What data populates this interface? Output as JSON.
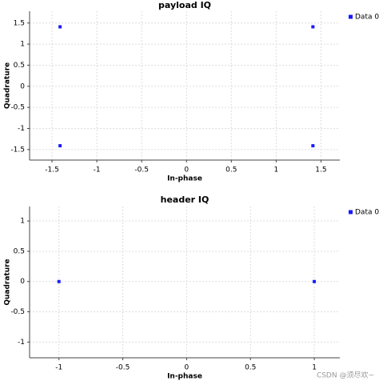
{
  "chart_data": [
    {
      "type": "scatter",
      "title": "payload IQ",
      "x_label": "In-phase",
      "y_label": "Quadrature",
      "xlim": [
        -1.75,
        1.71
      ],
      "ylim": [
        -1.75,
        1.78
      ],
      "xticks": [
        -1.5,
        -1,
        -0.5,
        0,
        0.5,
        1,
        1.5
      ],
      "yticks": [
        -1.5,
        -1,
        -0.5,
        0,
        0.5,
        1,
        1.5
      ],
      "grid": true,
      "legend": "top-right",
      "series": [
        {
          "name": "Data 0",
          "color": "#1a1aff",
          "x": [
            -1.41,
            1.41,
            -1.41,
            1.41
          ],
          "values": [
            1.41,
            1.41,
            -1.41,
            -1.41
          ]
        }
      ]
    },
    {
      "type": "scatter",
      "title": "header IQ",
      "x_label": "In-phase",
      "y_label": "Quadrature",
      "xlim": [
        -1.23,
        1.2
      ],
      "ylim": [
        -1.26,
        1.24
      ],
      "xticks": [
        -1,
        -0.5,
        0,
        0.5,
        1
      ],
      "yticks": [
        -1,
        -0.5,
        0,
        0.5,
        1
      ],
      "grid": true,
      "legend": "top-right",
      "series": [
        {
          "name": "Data 0",
          "color": "#1a1aff",
          "x": [
            -1,
            1
          ],
          "values": [
            0,
            0
          ]
        }
      ]
    }
  ],
  "watermark": "CSDN @须尽欢~"
}
